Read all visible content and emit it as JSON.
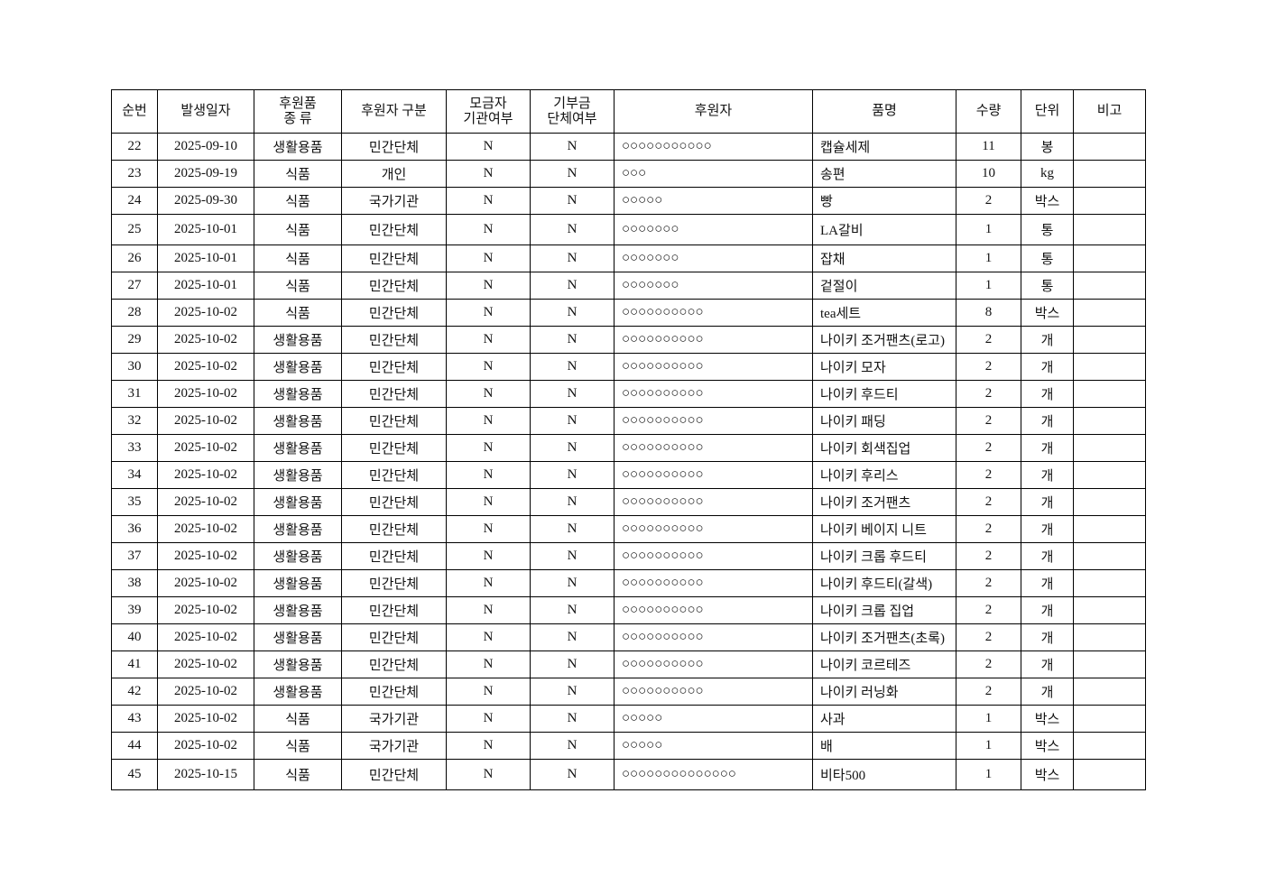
{
  "table": {
    "headers": [
      [
        "순번"
      ],
      [
        "발생일자"
      ],
      [
        "후원품",
        "종 류"
      ],
      [
        "후원자 구분"
      ],
      [
        "모금자",
        "기관여부"
      ],
      [
        "기부금",
        "단체여부"
      ],
      [
        "후원자"
      ],
      [
        "품명"
      ],
      [
        "수량"
      ],
      [
        "단위"
      ],
      [
        "비고"
      ]
    ],
    "rows": [
      [
        22,
        "2025-09-10",
        "생활용품",
        "민간단체",
        "N",
        "N",
        "○○○○○○○○○○○",
        "캡슐세제",
        11,
        "봉"
      ],
      [
        23,
        "2025-09-19",
        "식품",
        "개인",
        "N",
        "N",
        "○○○",
        "송편",
        10,
        "kg"
      ],
      [
        24,
        "2025-09-30",
        "식품",
        "국가기관",
        "N",
        "N",
        "○○○○○",
        "빵",
        2,
        "박스"
      ],
      [
        25,
        "2025-10-01",
        "식품",
        "민간단체",
        "N",
        "N",
        "○○○○○○○",
        "LA갈비",
        1,
        "통"
      ],
      [
        26,
        "2025-10-01",
        "식품",
        "민간단체",
        "N",
        "N",
        "○○○○○○○",
        "잡채",
        1,
        "통"
      ],
      [
        27,
        "2025-10-01",
        "식품",
        "민간단체",
        "N",
        "N",
        "○○○○○○○",
        "겉절이",
        1,
        "통"
      ],
      [
        28,
        "2025-10-02",
        "식품",
        "민간단체",
        "N",
        "N",
        "○○○○○○○○○○",
        "tea세트",
        8,
        "박스"
      ],
      [
        29,
        "2025-10-02",
        "생활용품",
        "민간단체",
        "N",
        "N",
        "○○○○○○○○○○",
        "나이키 조거팬츠(로고)",
        2,
        "개"
      ],
      [
        30,
        "2025-10-02",
        "생활용품",
        "민간단체",
        "N",
        "N",
        "○○○○○○○○○○",
        "나이키 모자",
        2,
        "개"
      ],
      [
        31,
        "2025-10-02",
        "생활용품",
        "민간단체",
        "N",
        "N",
        "○○○○○○○○○○",
        "나이키 후드티",
        2,
        "개"
      ],
      [
        32,
        "2025-10-02",
        "생활용품",
        "민간단체",
        "N",
        "N",
        "○○○○○○○○○○",
        "나이키 패딩",
        2,
        "개"
      ],
      [
        33,
        "2025-10-02",
        "생활용품",
        "민간단체",
        "N",
        "N",
        "○○○○○○○○○○",
        "나이키 회색집업",
        2,
        "개"
      ],
      [
        34,
        "2025-10-02",
        "생활용품",
        "민간단체",
        "N",
        "N",
        "○○○○○○○○○○",
        "나이키 후리스",
        2,
        "개"
      ],
      [
        35,
        "2025-10-02",
        "생활용품",
        "민간단체",
        "N",
        "N",
        "○○○○○○○○○○",
        "나이키 조거팬츠",
        2,
        "개"
      ],
      [
        36,
        "2025-10-02",
        "생활용품",
        "민간단체",
        "N",
        "N",
        "○○○○○○○○○○",
        "나이키 베이지 니트",
        2,
        "개"
      ],
      [
        37,
        "2025-10-02",
        "생활용품",
        "민간단체",
        "N",
        "N",
        "○○○○○○○○○○",
        "나이키 크롭 후드티",
        2,
        "개"
      ],
      [
        38,
        "2025-10-02",
        "생활용품",
        "민간단체",
        "N",
        "N",
        "○○○○○○○○○○",
        "나이키 후드티(갈색)",
        2,
        "개"
      ],
      [
        39,
        "2025-10-02",
        "생활용품",
        "민간단체",
        "N",
        "N",
        "○○○○○○○○○○",
        "나이키 크롭 집업",
        2,
        "개"
      ],
      [
        40,
        "2025-10-02",
        "생활용품",
        "민간단체",
        "N",
        "N",
        "○○○○○○○○○○",
        "나이키 조거팬츠(초록)",
        2,
        "개"
      ],
      [
        41,
        "2025-10-02",
        "생활용품",
        "민간단체",
        "N",
        "N",
        "○○○○○○○○○○",
        "나이키 코르테즈",
        2,
        "개"
      ],
      [
        42,
        "2025-10-02",
        "생활용품",
        "민간단체",
        "N",
        "N",
        "○○○○○○○○○○",
        "나이키 러닝화",
        2,
        "개"
      ],
      [
        43,
        "2025-10-02",
        "식품",
        "국가기관",
        "N",
        "N",
        "○○○○○",
        "사과",
        1,
        "박스"
      ],
      [
        44,
        "2025-10-02",
        "식품",
        "국가기관",
        "N",
        "N",
        "○○○○○",
        "배",
        1,
        "박스"
      ],
      [
        45,
        "2025-10-15",
        "식품",
        "민간단체",
        "N",
        "N",
        "○○○○○○○○○○○○○○",
        "비타500",
        1,
        "박스"
      ]
    ]
  }
}
